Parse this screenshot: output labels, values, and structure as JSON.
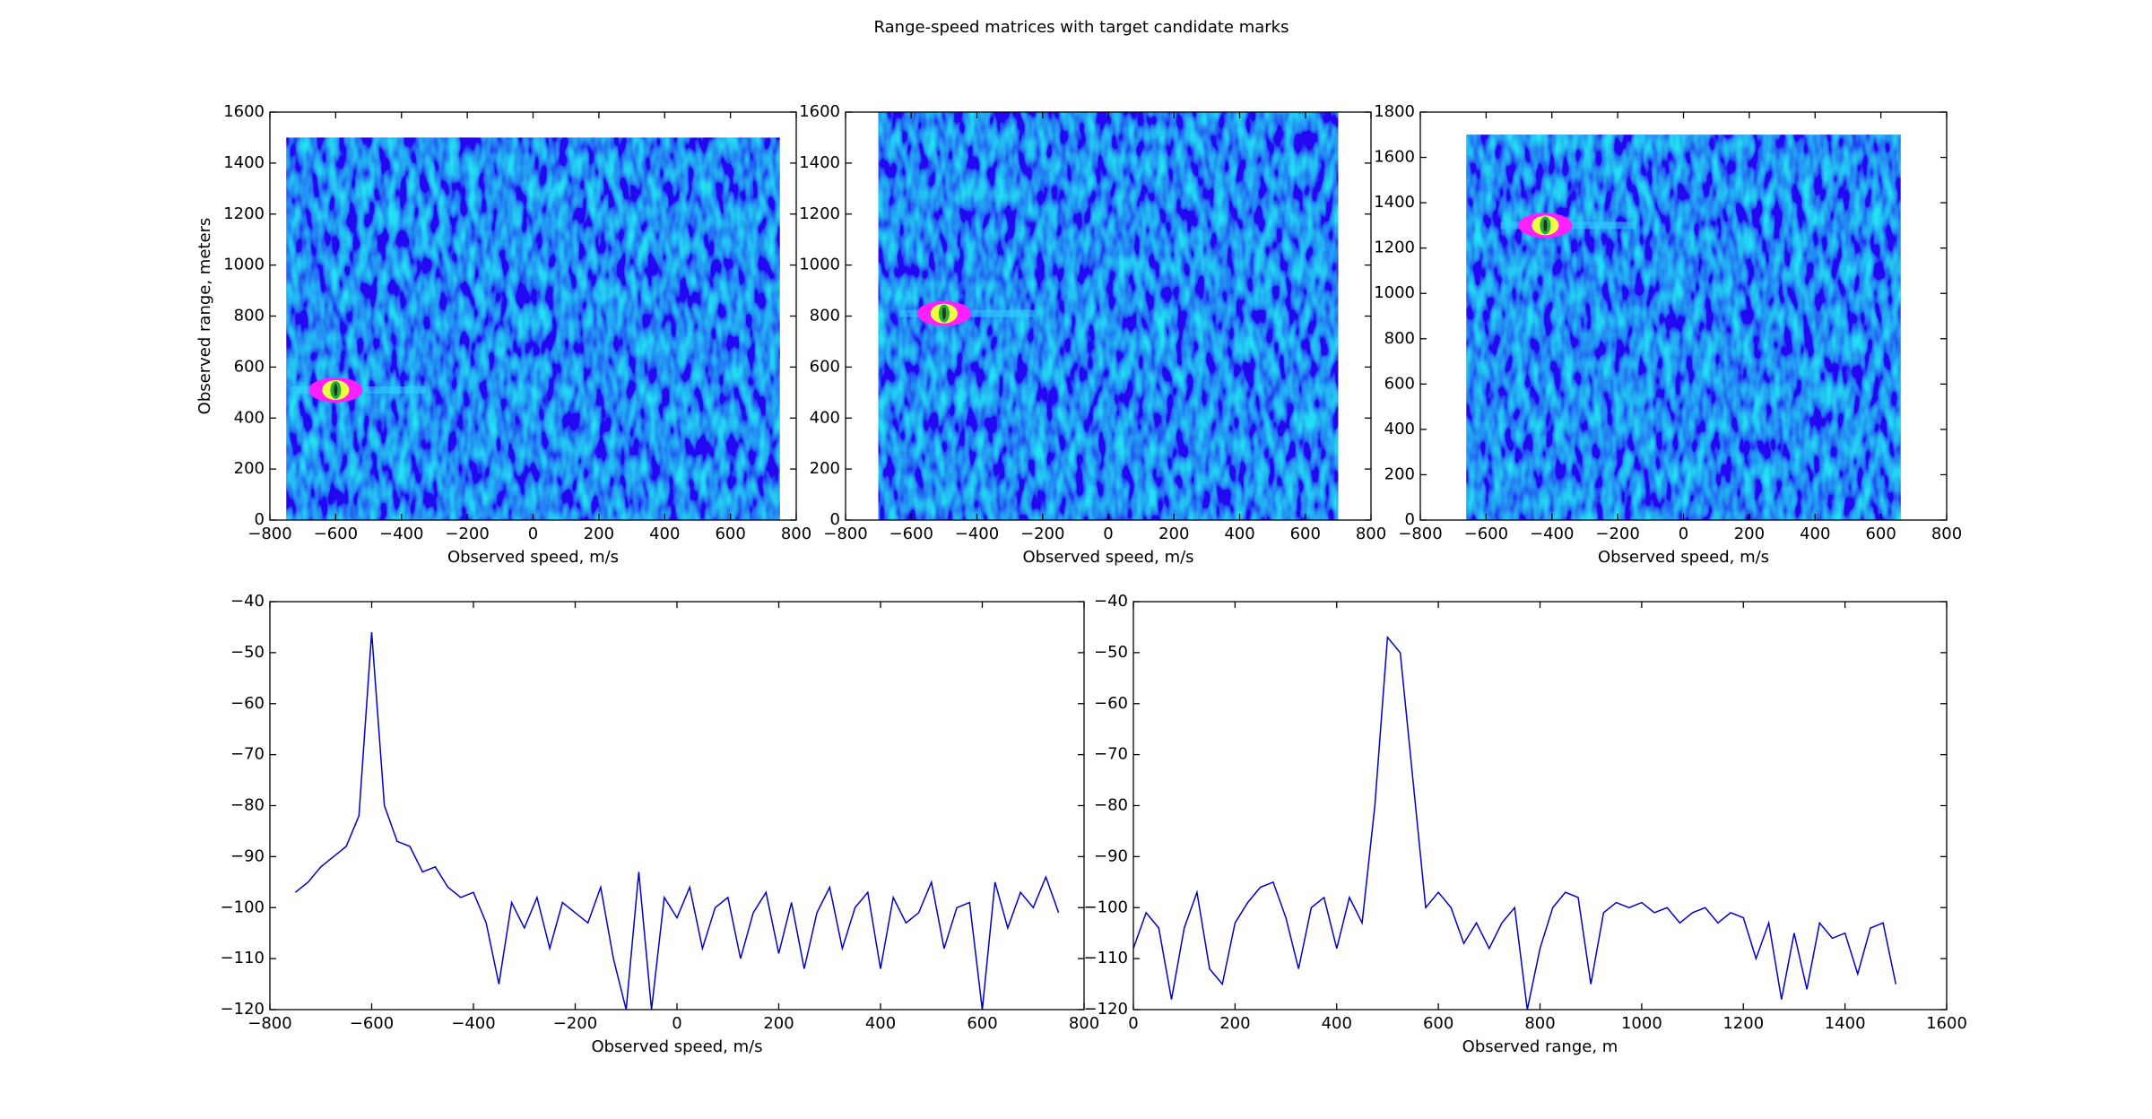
{
  "chart_data": [
    {
      "type": "heatmap",
      "title": "Range-speed matrices with target candidate marks",
      "xlabel": "Observed speed, m/s",
      "ylabel": "Observed range, meters",
      "xlim": [
        -800,
        800
      ],
      "xticks": [
        {
          "value": -800,
          "label": "−800"
        },
        {
          "value": -600,
          "label": "−600"
        },
        {
          "value": -400,
          "label": "−400"
        },
        {
          "value": -200,
          "label": "−200"
        },
        0,
        200,
        400,
        600,
        800
      ],
      "ylim": [
        0,
        1600
      ],
      "yticks": [
        0,
        200,
        400,
        600,
        800,
        1000,
        1200,
        1400,
        1600
      ],
      "extent": {
        "x": [
          -750,
          750
        ],
        "y": [
          0,
          1500
        ]
      },
      "target": {
        "x": -600,
        "y": 510
      }
    },
    {
      "type": "heatmap",
      "xlabel": "Observed speed, m/s",
      "xlim": [
        -800,
        800
      ],
      "xticks": [
        {
          "value": -800,
          "label": "−800"
        },
        {
          "value": -600,
          "label": "−600"
        },
        {
          "value": -400,
          "label": "−400"
        },
        {
          "value": -200,
          "label": "−200"
        },
        0,
        200,
        400,
        600,
        800
      ],
      "ylim": [
        0,
        1600
      ],
      "yticks": [
        0,
        200,
        400,
        600,
        800,
        1000,
        1200,
        1400,
        1600
      ],
      "extent": {
        "x": [
          -700,
          700
        ],
        "y": [
          0,
          1600
        ]
      },
      "target": {
        "x": -500,
        "y": 810
      }
    },
    {
      "type": "heatmap",
      "xlabel": "Observed speed, m/s",
      "xlim": [
        -800,
        800
      ],
      "xticks": [
        {
          "value": -800,
          "label": "−800"
        },
        {
          "value": -600,
          "label": "−600"
        },
        {
          "value": -400,
          "label": "−400"
        },
        {
          "value": -200,
          "label": "−200"
        },
        0,
        200,
        400,
        600,
        800
      ],
      "ylim": [
        0,
        1800
      ],
      "yticks": [
        0,
        200,
        400,
        600,
        800,
        1000,
        1200,
        1400,
        1600,
        1800
      ],
      "extent": {
        "x": [
          -660,
          660
        ],
        "y": [
          0,
          1700
        ]
      },
      "target": {
        "x": -420,
        "y": 1300
      }
    },
    {
      "type": "line",
      "xlabel": "Observed speed, m/s",
      "color": "#0000cc",
      "xlim": [
        -800,
        800
      ],
      "xticks": [
        {
          "value": -800,
          "label": "−800"
        },
        {
          "value": -600,
          "label": "−600"
        },
        {
          "value": -400,
          "label": "−400"
        },
        {
          "value": -200,
          "label": "−200"
        },
        0,
        200,
        400,
        600,
        800
      ],
      "ylim": [
        -120,
        -40
      ],
      "yticks": [
        {
          "value": -120,
          "label": "−120"
        },
        {
          "value": -110,
          "label": "−110"
        },
        {
          "value": -100,
          "label": "−100"
        },
        {
          "value": -90,
          "label": "−90"
        },
        {
          "value": -80,
          "label": "−80"
        },
        {
          "value": -70,
          "label": "−70"
        },
        {
          "value": -60,
          "label": "−60"
        },
        {
          "value": -50,
          "label": "−50"
        },
        {
          "value": -40,
          "label": "−40"
        }
      ],
      "x": [
        -750,
        -725,
        -700,
        -675,
        -650,
        -625,
        -600,
        -575,
        -550,
        -525,
        -500,
        -475,
        -450,
        -425,
        -400,
        -375,
        -350,
        -325,
        -300,
        -275,
        -250,
        -225,
        -200,
        -175,
        -150,
        -125,
        -100,
        -75,
        -50,
        -25,
        0,
        25,
        50,
        75,
        100,
        125,
        150,
        175,
        200,
        225,
        250,
        275,
        300,
        325,
        350,
        375,
        400,
        425,
        450,
        475,
        500,
        525,
        550,
        575,
        600,
        625,
        650,
        675,
        700,
        725,
        750
      ],
      "values": [
        -97,
        -95,
        -92,
        -90,
        -88,
        -82,
        -46,
        -80,
        -87,
        -88,
        -93,
        -92,
        -96,
        -98,
        -97,
        -103,
        -115,
        -99,
        -104,
        -98,
        -108,
        -99,
        -101,
        -103,
        -96,
        -110,
        -120,
        -93,
        -120,
        -98,
        -102,
        -96,
        -108,
        -100,
        -98,
        -110,
        -101,
        -97,
        -109,
        -99,
        -112,
        -101,
        -96,
        -108,
        -100,
        -97,
        -112,
        -98,
        -103,
        -101,
        -95,
        -108,
        -100,
        -99,
        -120,
        -95,
        -104,
        -97,
        -100,
        -94,
        -101
      ]
    },
    {
      "type": "line",
      "xlabel": "Observed range, m",
      "color": "#0000cc",
      "xlim": [
        0,
        1600
      ],
      "xticks": [
        0,
        200,
        400,
        600,
        800,
        1000,
        1200,
        1400,
        1600
      ],
      "ylim": [
        -120,
        -40
      ],
      "yticks": [
        {
          "value": -120,
          "label": "−120"
        },
        {
          "value": -110,
          "label": "−110"
        },
        {
          "value": -100,
          "label": "−100"
        },
        {
          "value": -90,
          "label": "−90"
        },
        {
          "value": -80,
          "label": "−80"
        },
        {
          "value": -70,
          "label": "−70"
        },
        {
          "value": -60,
          "label": "−60"
        },
        {
          "value": -50,
          "label": "−50"
        },
        {
          "value": -40,
          "label": "−40"
        }
      ],
      "x": [
        0,
        25,
        50,
        75,
        100,
        125,
        150,
        175,
        200,
        225,
        250,
        275,
        300,
        325,
        350,
        375,
        400,
        425,
        450,
        475,
        500,
        525,
        550,
        575,
        600,
        625,
        650,
        675,
        700,
        725,
        750,
        775,
        800,
        825,
        850,
        875,
        900,
        925,
        950,
        975,
        1000,
        1025,
        1050,
        1075,
        1100,
        1125,
        1150,
        1175,
        1200,
        1225,
        1250,
        1275,
        1300,
        1325,
        1350,
        1375,
        1400,
        1425,
        1450,
        1475,
        1500
      ],
      "values": [
        -108,
        -101,
        -104,
        -118,
        -104,
        -97,
        -112,
        -115,
        -103,
        -99,
        -96,
        -95,
        -102,
        -112,
        -100,
        -98,
        -108,
        -98,
        -103,
        -80,
        -47,
        -50,
        -75,
        -100,
        -97,
        -100,
        -107,
        -103,
        -108,
        -103,
        -100,
        -120,
        -108,
        -100,
        -97,
        -98,
        -115,
        -101,
        -99,
        -100,
        -99,
        -101,
        -100,
        -103,
        -101,
        -100,
        -103,
        -101,
        -102,
        -110,
        -103,
        -118,
        -105,
        -116,
        -103,
        -106,
        -105,
        -113,
        -104,
        -103,
        -115
      ]
    }
  ]
}
